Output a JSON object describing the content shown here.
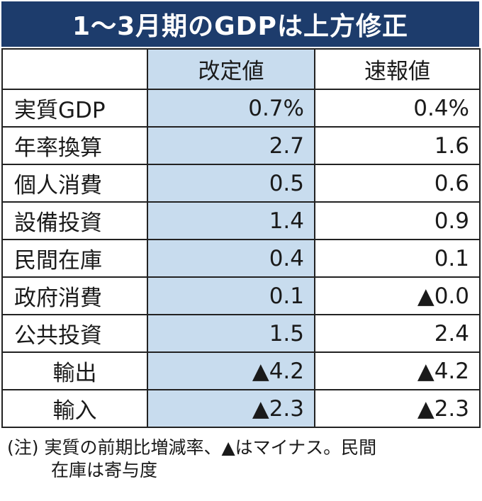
{
  "title": "1〜3月期のGDPは上方修正",
  "chart_data": {
    "type": "table",
    "title": "1〜3月期のGDPは上方修正",
    "columns": [
      "",
      "改定値",
      "速報値"
    ],
    "rows": [
      {
        "label": "実質GDP",
        "revised": "0.7%",
        "preliminary": "0.4%"
      },
      {
        "label": "年率換算",
        "revised": "2.7",
        "preliminary": "1.6"
      },
      {
        "label": "個人消費",
        "revised": "0.5",
        "preliminary": "0.6"
      },
      {
        "label": "設備投資",
        "revised": "1.4",
        "preliminary": "0.9"
      },
      {
        "label": "民間在庫",
        "revised": "0.4",
        "preliminary": "0.1"
      },
      {
        "label": "政府消費",
        "revised": "0.1",
        "preliminary": "▲0.0"
      },
      {
        "label": "公共投資",
        "revised": "1.5",
        "preliminary": "2.4"
      },
      {
        "label": "輸出",
        "revised": "▲4.2",
        "preliminary": "▲4.2"
      },
      {
        "label": "輸入",
        "revised": "▲2.3",
        "preliminary": "▲2.3"
      }
    ]
  },
  "note": {
    "line1": "(注) 実質の前期比増減率、▲はマイナス。民間",
    "line2": "在庫は寄与度"
  },
  "colors": {
    "title_bg": "#1d3c6c",
    "revised_bg": "#c8dcee"
  }
}
